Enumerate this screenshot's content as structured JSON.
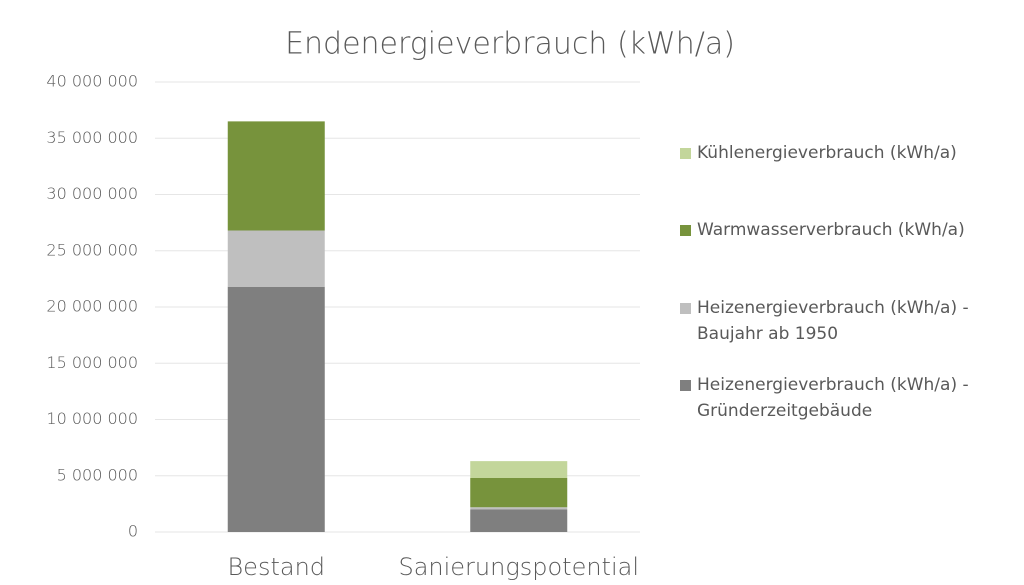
{
  "chart_data": {
    "type": "stacked-bar",
    "title": "Endenergieverbrauch (kWh/a)",
    "categories": [
      "Bestand",
      "Sanierungspotential"
    ],
    "series": [
      {
        "name": "Heizenergieverbrauch (kWh/a) - Gründerzeitgebäude",
        "color": "#7f7f7f",
        "values": [
          21800000,
          2000000
        ]
      },
      {
        "name": "Heizenergieverbrauch (kWh/a) - Baujahr ab 1950",
        "color": "#bfbfbf",
        "values": [
          5000000,
          200000
        ]
      },
      {
        "name": "Warmwasserverbrauch (kWh/a)",
        "color": "#77933c",
        "values": [
          9700000,
          2600000
        ]
      },
      {
        "name": "Kühlenergieverbrauch (kWh/a)",
        "color": "#c3d69b",
        "values": [
          0,
          1500000
        ]
      }
    ],
    "ylim": [
      0,
      40000000
    ],
    "yticks": [
      0,
      {
        "value": 5000000,
        "label": "5 000 000"
      },
      {
        "value": 10000000,
        "label": "10 000 000"
      },
      {
        "value": 15000000,
        "label": "15 000 000"
      },
      {
        "value": 20000000,
        "label": "20 000 000"
      },
      {
        "value": 25000000,
        "label": "25 000 000"
      },
      {
        "value": 30000000,
        "label": "30 000 000"
      },
      {
        "value": 35000000,
        "label": "35 000 000"
      },
      {
        "value": 40000000,
        "label": "40 000 000"
      }
    ],
    "grid": true,
    "legend": "right"
  }
}
